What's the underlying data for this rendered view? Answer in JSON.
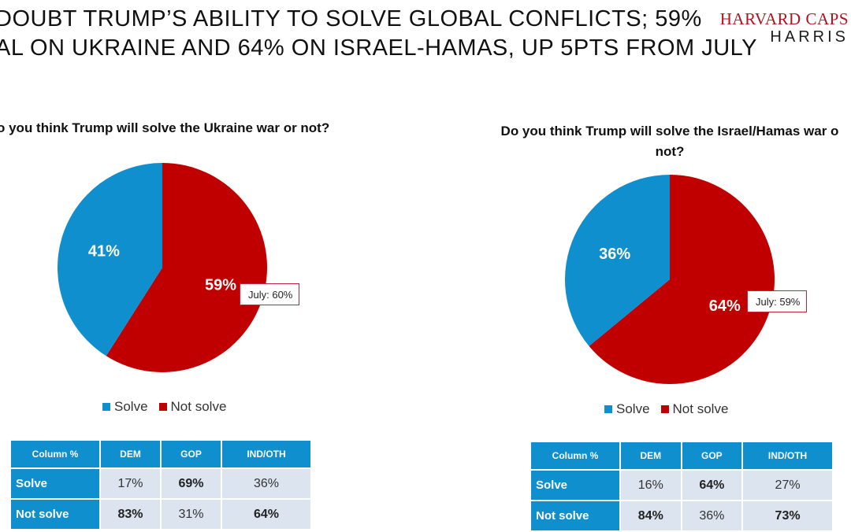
{
  "headline": {
    "line1": "DOUBT TRUMP’S ABILITY TO SOLVE GLOBAL CONFLICTS; 59%",
    "line2": "AL ON UKRAINE AND 64% ON ISRAEL-HAMAS, UP 5PTS FROM JULY"
  },
  "logo": {
    "line1": "HARVARD CAPS",
    "line2": "HARRIS"
  },
  "colors": {
    "solve": "#0f8fce",
    "not_solve": "#c00000",
    "table_header": "#0f8fce",
    "table_cell": "#dbe4ef"
  },
  "chart_data": [
    {
      "type": "pie",
      "title": "o you think Trump will solve the Ukraine war or not?",
      "categories": [
        "Solve",
        "Not solve"
      ],
      "values": [
        41,
        59
      ],
      "labels": [
        "41%",
        "59%"
      ],
      "annotations": [
        "July: 60%"
      ],
      "legend": [
        "Solve",
        "Not solve"
      ],
      "legend_position": "bottom"
    },
    {
      "type": "pie",
      "title": "Do you think Trump will solve the Israel/Hamas war o not?",
      "categories": [
        "Solve",
        "Not solve"
      ],
      "values": [
        36,
        64
      ],
      "labels": [
        "36%",
        "64%"
      ],
      "annotations": [
        "July: 59%"
      ],
      "legend": [
        "Solve",
        "Not solve"
      ],
      "legend_position": "bottom"
    },
    {
      "type": "table",
      "columns": [
        "Column %",
        "DEM",
        "GOP",
        "IND/OTH"
      ],
      "rows": [
        {
          "label": "Solve",
          "values": [
            "17%",
            "69%",
            "36%"
          ]
        },
        {
          "label": "Not solve",
          "values": [
            "83%",
            "31%",
            "64%"
          ]
        }
      ]
    },
    {
      "type": "table",
      "columns": [
        "Column %",
        "DEM",
        "GOP",
        "IND/OTH"
      ],
      "rows": [
        {
          "label": "Solve",
          "values": [
            "16%",
            "64%",
            "27%"
          ]
        },
        {
          "label": "Not solve",
          "values": [
            "84%",
            "36%",
            "73%"
          ]
        }
      ]
    }
  ],
  "q2_lines": [
    "Do you think Trump will solve the Israel/Hamas war o",
    "not?"
  ]
}
